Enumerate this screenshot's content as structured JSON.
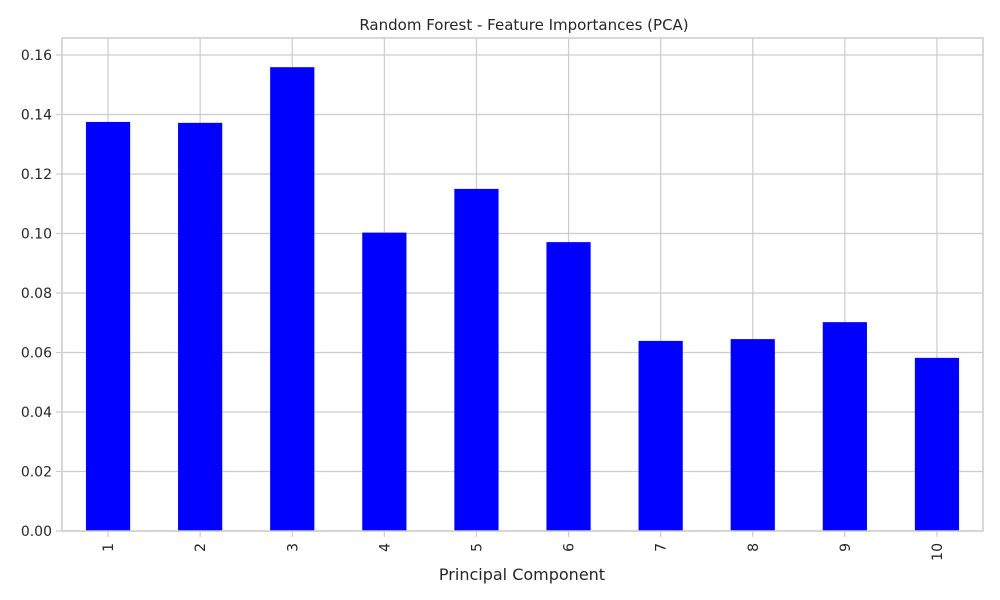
{
  "chart_data": {
    "type": "bar",
    "title": "Random Forest - Feature Importances (PCA)",
    "xlabel": "Principal Component",
    "ylabel": "",
    "categories": [
      "1",
      "2",
      "3",
      "4",
      "5",
      "6",
      "7",
      "8",
      "9",
      "10"
    ],
    "values": [
      0.1375,
      0.1372,
      0.1559,
      0.1003,
      0.115,
      0.0971,
      0.0639,
      0.0645,
      0.0702,
      0.0582
    ],
    "ylim": [
      0,
      0.16
    ],
    "yticks": [
      "0.00",
      "0.02",
      "0.04",
      "0.06",
      "0.08",
      "0.10",
      "0.12",
      "0.14",
      "0.16"
    ],
    "grid": true,
    "legend": "none",
    "bar_color": "#0000ff",
    "grid_color": "#cccccc",
    "text_color": "#262626"
  }
}
